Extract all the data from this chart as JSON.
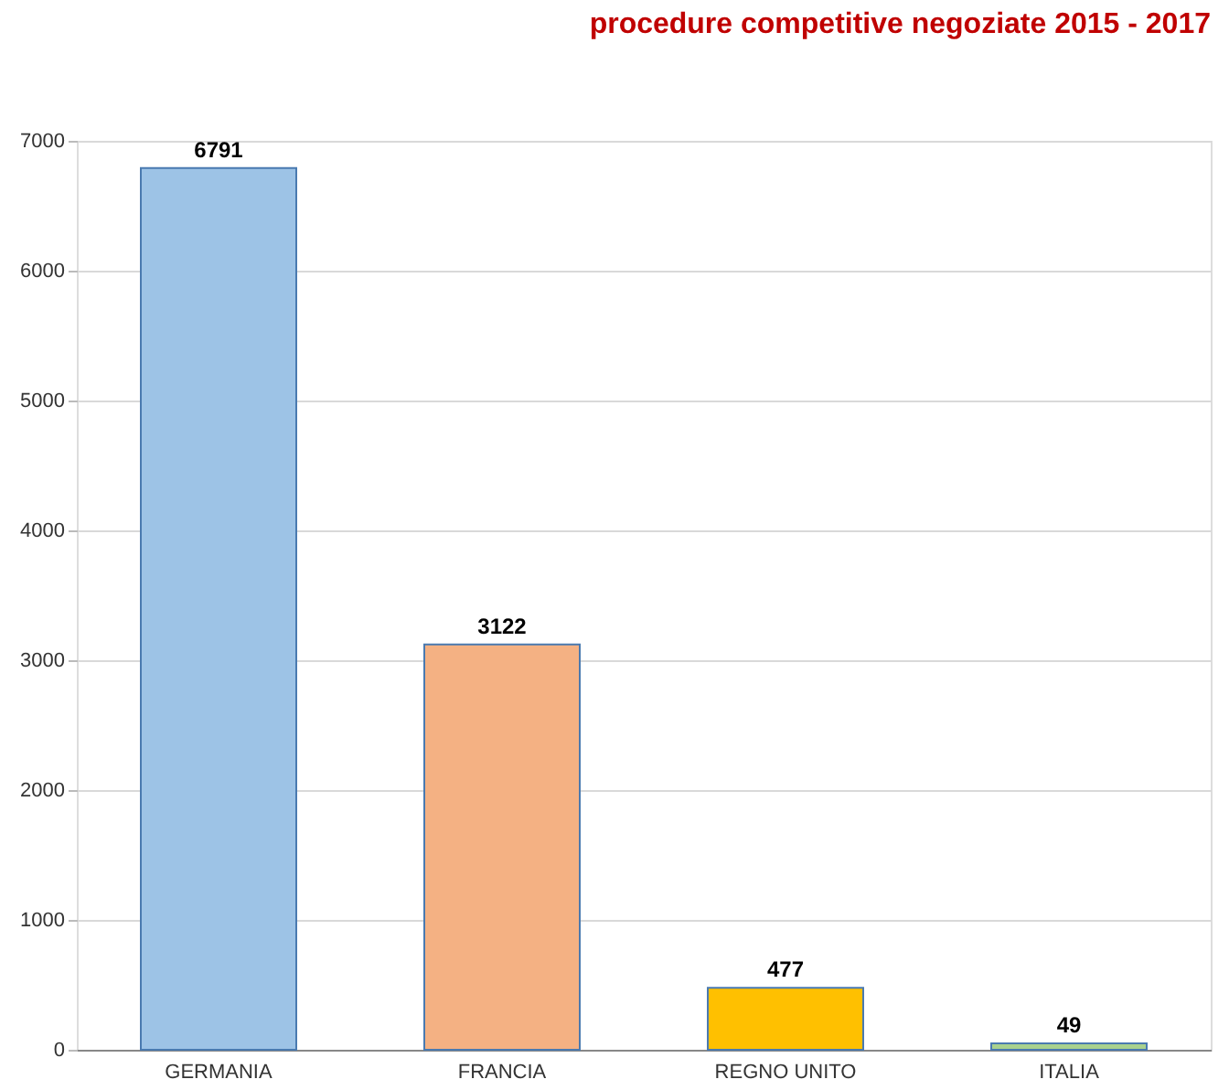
{
  "chart_data": {
    "type": "bar",
    "title": "procedure competitive negoziate 2015 - 2017",
    "categories": [
      "GERMANIA",
      "FRANCIA",
      "REGNO UNITO",
      "ITALIA"
    ],
    "values": [
      6791,
      3122,
      477,
      49
    ],
    "colors": [
      "#9dc3e6",
      "#f4b183",
      "#ffc000",
      "#a9d18e"
    ],
    "ylim": [
      0,
      7000
    ],
    "yticks": [
      0,
      1000,
      2000,
      3000,
      4000,
      5000,
      6000,
      7000
    ],
    "grid": "y",
    "data_labels": true,
    "legend": false
  }
}
